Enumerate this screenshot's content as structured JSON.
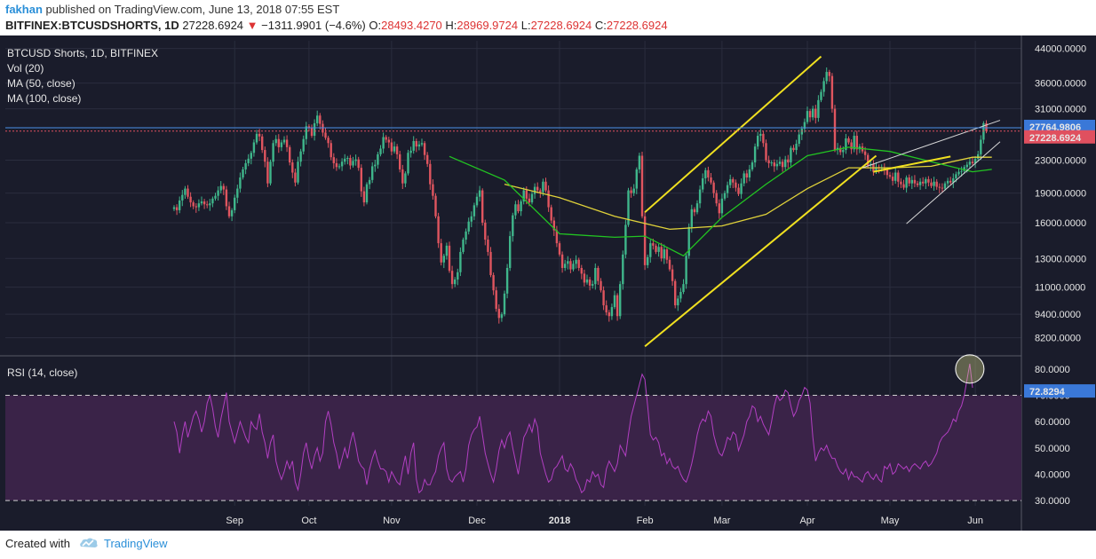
{
  "header": {
    "author": "fakhan",
    "published": "published on TradingView.com, June 13, 2018 07:55 EST",
    "symbol": "BITFINEX:BTCUSDSHORTS, 1D",
    "last": "27228.6924",
    "change": "−1311.9901 (−4.6%)",
    "o_label": "O:",
    "o": "28493.4270",
    "h_label": "H:",
    "h": "28969.9724",
    "l_label": "L:",
    "l": "27228.6924",
    "c_label": "C:",
    "c": "27228.6924"
  },
  "legend": {
    "title": "BTCUSD Shorts, 1D, BITFINEX",
    "vol": "Vol (20)",
    "ma50": "MA (50, close)",
    "ma100": "MA (100, close)",
    "rsi": "RSI (14, close)"
  },
  "footer": {
    "created_with": "Created with",
    "brand": "TradingView"
  },
  "colors": {
    "background": "#1a1c2b",
    "up": "#3fb68b",
    "down": "#e0555f",
    "ma50": "#22c422",
    "ma100": "#e0d23a",
    "trend": "#f0e020",
    "wedge": "#d8d8d8",
    "rsi": "#b23fc2",
    "rsi_band": "#3a2348",
    "price_line": "#4a8fe8",
    "last_label": "#e0505f",
    "high_label": "#3a78d8",
    "rsi_label": "#3a78d8"
  },
  "chart_data": [
    {
      "type": "candlestick",
      "title": "BTCUSD Shorts, 1D, BITFINEX",
      "scale": "log",
      "ylim": [
        7500,
        46000
      ],
      "y_ticks": [
        8200,
        9400,
        11000,
        13000,
        16000,
        19000,
        23000,
        31000,
        36000,
        44000
      ],
      "y_tick_labels": [
        "8200.0000",
        "9400.0000",
        "11000.0000",
        "13000.0000",
        "16000.0000",
        "19000.0000",
        "23000.0000",
        "31000.0000",
        "36000.0000",
        "44000.0000"
      ],
      "x_labels": [
        "Sep",
        "Oct",
        "Nov",
        "Dec",
        "2018",
        "Feb",
        "Mar",
        "Apr",
        "May",
        "Jun"
      ],
      "x_label_index": [
        22,
        49,
        79,
        110,
        140,
        171,
        199,
        230,
        260,
        291
      ],
      "close_series": [
        17500,
        17200,
        18200,
        18800,
        19500,
        18600,
        18000,
        17600,
        17500,
        17900,
        18100,
        17800,
        17700,
        17900,
        18400,
        18700,
        19300,
        19800,
        19400,
        17600,
        16600,
        17200,
        18500,
        19500,
        20800,
        21800,
        22600,
        23200,
        24000,
        25500,
        26800,
        26400,
        24400,
        22800,
        20100,
        22800,
        25400,
        26000,
        24800,
        25500,
        25900,
        24800,
        22700,
        21400,
        20200,
        22800,
        24200,
        26000,
        28000,
        27800,
        26500,
        28500,
        29800,
        28400,
        27000,
        26200,
        25400,
        23400,
        22600,
        22100,
        22200,
        22800,
        23200,
        23300,
        22300,
        22900,
        23100,
        22000,
        19200,
        18000,
        20000,
        20500,
        22200,
        22400,
        23800,
        24600,
        26300,
        25900,
        25500,
        24200,
        24900,
        23800,
        21800,
        20100,
        21300,
        24000,
        24300,
        25700,
        24900,
        25200,
        25400,
        23700,
        22500,
        20000,
        18700,
        16600,
        14200,
        12700,
        13200,
        14000,
        12100,
        11200,
        11500,
        12000,
        13500,
        14500,
        15200,
        16100,
        16600,
        17700,
        18600,
        19300,
        16000,
        14500,
        13500,
        11800,
        10800,
        9700,
        9200,
        9400,
        10600,
        12300,
        14800,
        16700,
        17800,
        17100,
        18100,
        19300,
        18400,
        18000,
        18900,
        19700,
        19300,
        19100,
        20300,
        19300,
        17500,
        16200,
        15300,
        14200,
        13300,
        12300,
        12600,
        12800,
        12200,
        12600,
        12900,
        12300,
        11900,
        11300,
        11500,
        11100,
        11200,
        12300,
        11400,
        10800,
        9900,
        9500,
        9300,
        9800,
        10500,
        9300,
        11200,
        13300,
        15800,
        19300,
        19000,
        19500,
        21800,
        23600,
        16600,
        12500,
        13100,
        14200,
        14000,
        13500,
        13900,
        13000,
        13700,
        12900,
        12200,
        11400,
        9900,
        10300,
        10700,
        11200,
        13200,
        15600,
        17300,
        17000,
        17900,
        19400,
        20700,
        21700,
        20800,
        20200,
        19000,
        17900,
        16900,
        18400,
        19000,
        19900,
        20600,
        20200,
        19600,
        18900,
        20100,
        21300,
        20800,
        21800,
        22700,
        24900,
        26500,
        26800,
        25400,
        23000,
        22600,
        22700,
        22200,
        22500,
        22800,
        22100,
        23100,
        22700,
        24700,
        24400,
        25300,
        26700,
        27600,
        28700,
        30600,
        29500,
        31000,
        29400,
        32600,
        34200,
        36400,
        38400,
        37500,
        31000,
        24400,
        24700,
        24100,
        24400,
        26100,
        25500,
        24500,
        26500,
        24500,
        24900,
        24200,
        23700,
        22300,
        22500,
        21500,
        22100,
        21900,
        22000,
        21800,
        21100,
        20900,
        20400,
        21400,
        20300,
        20000,
        19600,
        20800,
        20100,
        20500,
        20100,
        19900,
        20300,
        20100,
        20600,
        20200,
        19800,
        20300,
        19700,
        19600,
        19500,
        20100,
        20400,
        20200,
        20700,
        21200,
        21500,
        21600,
        22100,
        22400,
        22800,
        22600,
        23200,
        23800,
        25900,
        28500,
        27228.6924
      ],
      "last_price": 27228.6924,
      "last_price_label": "27228.6924",
      "high_line": 27764.9806,
      "high_line_label": "27764.9806",
      "ma50": [
        [
          100,
          23500
        ],
        [
          120,
          20500
        ],
        [
          140,
          15000
        ],
        [
          160,
          14700
        ],
        [
          171,
          14800
        ],
        [
          185,
          13200
        ],
        [
          199,
          16500
        ],
        [
          215,
          20000
        ],
        [
          230,
          23600
        ],
        [
          245,
          24800
        ],
        [
          260,
          24200
        ],
        [
          275,
          22800
        ],
        [
          290,
          21500
        ],
        [
          297,
          21800
        ]
      ],
      "ma100": [
        [
          120,
          20000
        ],
        [
          140,
          18500
        ],
        [
          160,
          16600
        ],
        [
          180,
          15400
        ],
        [
          199,
          15700
        ],
        [
          215,
          16800
        ],
        [
          230,
          19500
        ],
        [
          245,
          22000
        ],
        [
          260,
          22000
        ],
        [
          275,
          22200
        ],
        [
          290,
          23400
        ],
        [
          297,
          23400
        ]
      ],
      "trend_lines": [
        [
          [
            171,
            17000
          ],
          [
            235,
            42000
          ]
        ],
        [
          [
            171,
            7800
          ],
          [
            255,
            23600
          ]
        ],
        [
          [
            254,
            21500
          ],
          [
            282,
            23500
          ]
        ]
      ],
      "wedge_lines": [
        [
          [
            250,
            22000
          ],
          [
            300,
            29000
          ]
        ],
        [
          [
            266,
            15900
          ],
          [
            300,
            25600
          ]
        ]
      ]
    },
    {
      "type": "line",
      "title": "RSI (14, close)",
      "ylim": [
        28,
        84
      ],
      "y_ticks": [
        30,
        40,
        50,
        60,
        70,
        80
      ],
      "y_tick_labels": [
        "30.0000",
        "40.0000",
        "50.0000",
        "60.0000",
        "70.0000",
        "80.0000"
      ],
      "band": [
        30,
        70
      ],
      "last_value": 72.8294,
      "last_value_label": "72.8294",
      "values": [
        60,
        56,
        48,
        55,
        60,
        54,
        58,
        62,
        64,
        61,
        56,
        60,
        67,
        70,
        65,
        58,
        54,
        61,
        66,
        71,
        60,
        56,
        52,
        56,
        60,
        57,
        54,
        52,
        60,
        58,
        57,
        63,
        56,
        52,
        46,
        52,
        55,
        45,
        41,
        38,
        41,
        45,
        42,
        45,
        37,
        34,
        40,
        48,
        52,
        46,
        42,
        47,
        50,
        45,
        48,
        60,
        64,
        59,
        52,
        48,
        42,
        46,
        50,
        46,
        52,
        56,
        51,
        45,
        43,
        42,
        36,
        42,
        46,
        49,
        45,
        42,
        42,
        41,
        37,
        41,
        39,
        37,
        36,
        42,
        47,
        40,
        48,
        52,
        38,
        33,
        34,
        38,
        36,
        36,
        39,
        41,
        47,
        50,
        52,
        42,
        38,
        37,
        39,
        40,
        41,
        37,
        42,
        51,
        55,
        57,
        58,
        62,
        55,
        48,
        44,
        40,
        37,
        42,
        49,
        53,
        50,
        54,
        56,
        50,
        45,
        40,
        47,
        54,
        56,
        59,
        56,
        61,
        58,
        48,
        44,
        40,
        37,
        38,
        42,
        43,
        45,
        47,
        42,
        41,
        44,
        42,
        38,
        36,
        33,
        34,
        38,
        37,
        41,
        39,
        40,
        36,
        35,
        42,
        45,
        43,
        41,
        44,
        51,
        49,
        47,
        55,
        62,
        66,
        70,
        74,
        78,
        76,
        66,
        55,
        53,
        54,
        52,
        47,
        48,
        44,
        46,
        43,
        42,
        43,
        40,
        38,
        37,
        40,
        44,
        49,
        55,
        59,
        61,
        60,
        64,
        62,
        55,
        51,
        48,
        47,
        50,
        54,
        53,
        56,
        55,
        49,
        52,
        55,
        60,
        62,
        66,
        65,
        60,
        62,
        59,
        57,
        55,
        60,
        66,
        70,
        68,
        69,
        72,
        71,
        66,
        62,
        64,
        68,
        70,
        73,
        72,
        67,
        54,
        45,
        48,
        50,
        49,
        51,
        48,
        46,
        46,
        43,
        41,
        40,
        42,
        38,
        41,
        39,
        39,
        38,
        37,
        40,
        41,
        39,
        38,
        40,
        38,
        37,
        43,
        42,
        44,
        40,
        41,
        44,
        43,
        42,
        43,
        41,
        43,
        44,
        43,
        42,
        44,
        45,
        43,
        44,
        46,
        48,
        52,
        54,
        55,
        56,
        58,
        61,
        60,
        64,
        66,
        70,
        76,
        82,
        72.8294
      ]
    }
  ]
}
